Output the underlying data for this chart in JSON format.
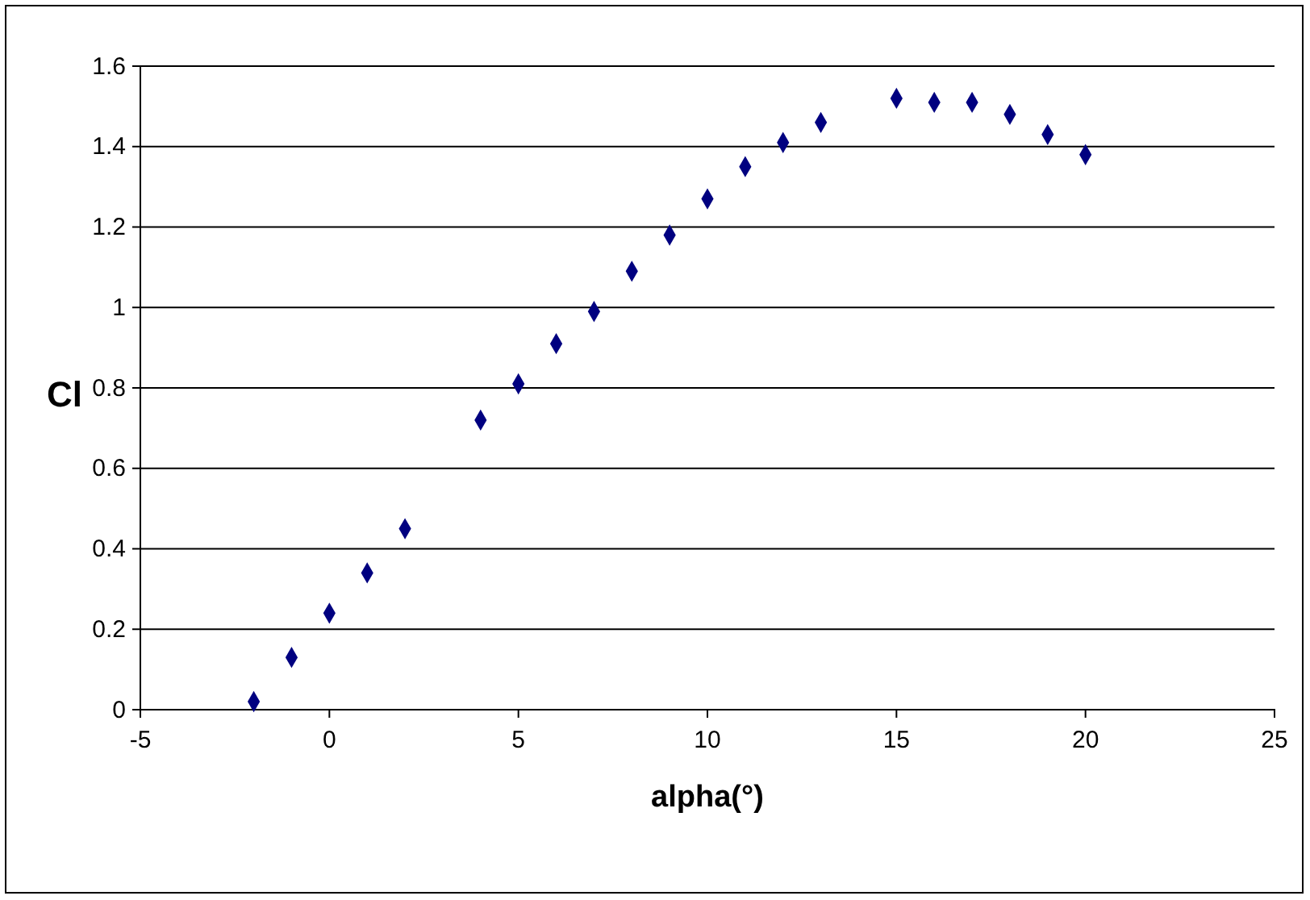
{
  "chart_data": {
    "type": "scatter",
    "xlabel": "alpha(°)",
    "ylabel": "Cl",
    "x": [
      -2,
      -1,
      0,
      1,
      2,
      4,
      5,
      6,
      7,
      8,
      9,
      10,
      11,
      12,
      13,
      15,
      16,
      17,
      18,
      19,
      20
    ],
    "series": [
      {
        "color": "#000080",
        "values": [
          0.02,
          0.13,
          0.24,
          0.34,
          0.45,
          0.72,
          0.81,
          0.91,
          0.99,
          1.09,
          1.18,
          1.27,
          1.35,
          1.41,
          1.46,
          1.52,
          1.51,
          1.51,
          1.48,
          1.43,
          1.38
        ]
      }
    ],
    "xlim": [
      -5,
      25
    ],
    "xticks": [
      -5,
      0,
      5,
      10,
      15,
      20,
      25
    ],
    "ylim": [
      0,
      1.6
    ],
    "yticks": [
      0,
      0.2,
      0.4,
      0.6,
      0.8,
      1,
      1.2,
      1.4,
      1.6
    ],
    "grid": "y",
    "marker": "diamond"
  }
}
